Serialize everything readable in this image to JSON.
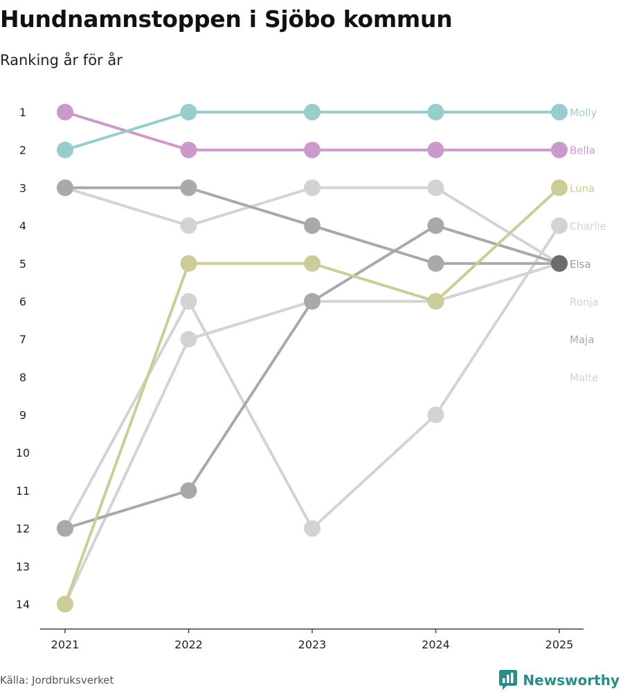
{
  "title": "Hundnamnstoppen i Sjöbo kommun",
  "subtitle": "Ranking år för år",
  "source": "Källa: Jordbruksverket",
  "brand": "Newsworthy",
  "chart_data": {
    "type": "line",
    "chart_kind": "bump",
    "x": [
      2021,
      2022,
      2023,
      2024,
      2025
    ],
    "y_ticks": [
      1,
      2,
      3,
      4,
      5,
      6,
      7,
      8,
      9,
      10,
      11,
      12,
      13,
      14
    ],
    "ylim": [
      1,
      14
    ],
    "y_reversed": true,
    "xlabel": "",
    "ylabel": "",
    "series": [
      {
        "name": "Malte",
        "values": [
          3,
          4,
          3,
          3,
          5
        ],
        "color": "#d3d3d3",
        "label_rank": 8
      },
      {
        "name": "Maja",
        "values": [
          12,
          6,
          12,
          9,
          4
        ],
        "color": "#d3d3d3",
        "label_rank": 7
      },
      {
        "name": "Ronja",
        "values": [
          14,
          7,
          6,
          6,
          5
        ],
        "color": "#d3d3d3",
        "label_rank": 6
      },
      {
        "name": "Charlie",
        "values": [
          12,
          11,
          6,
          4,
          5
        ],
        "color": "#a9a9a9",
        "label_rank": 4
      },
      {
        "name": "Elsa",
        "values": [
          3,
          3,
          4,
          5,
          5
        ],
        "color": "#a9a9a9",
        "label_rank": 5
      },
      {
        "name": "Luna",
        "values": [
          14,
          5,
          5,
          6,
          3
        ],
        "color": "#cccc99",
        "label_rank": 3
      },
      {
        "name": "Bella",
        "values": [
          1,
          2,
          2,
          2,
          2
        ],
        "color": "#cc99cc",
        "label_rank": 2
      },
      {
        "name": "Molly",
        "values": [
          2,
          1,
          1,
          1,
          1
        ],
        "color": "#99cccc",
        "label_rank": 1
      }
    ],
    "end_labels": [
      {
        "name": "Molly",
        "rank": 1,
        "color": "#99cccc"
      },
      {
        "name": "Bella",
        "rank": 2,
        "color": "#cc99cc"
      },
      {
        "name": "Luna",
        "rank": 3,
        "color": "#cccc99"
      },
      {
        "name": "Charlie",
        "rank": 4,
        "color": "#d3d3d3"
      },
      {
        "name": "Elsa",
        "rank": 5,
        "color": "#999999"
      },
      {
        "name": "Ronja",
        "rank": 6,
        "color": "#d3d3d3"
      },
      {
        "name": "Maja",
        "rank": 7,
        "color": "#a9a9a9"
      },
      {
        "name": "Malte",
        "rank": 8,
        "color": "#d3d3d3"
      }
    ],
    "highlight_point": {
      "x": 2025,
      "y": 5,
      "color": "#6b6b70"
    }
  }
}
